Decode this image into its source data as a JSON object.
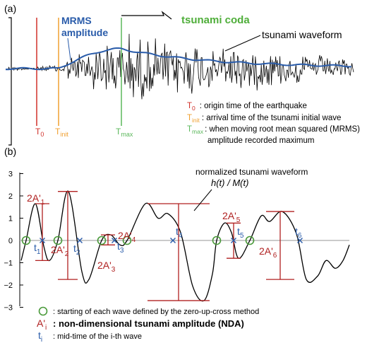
{
  "panel_a": {
    "label": "(a)",
    "mrms_title_line1": "MRMS",
    "mrms_title_line2": "amplitude",
    "coda_label": "tsunami coda",
    "waveform_label": "tsunami waveform",
    "markers": [
      {
        "main": "T",
        "sub": "0",
        "color": "#d0302a"
      },
      {
        "main": "T",
        "sub": "init",
        "color": "#f0a030"
      },
      {
        "main": "T",
        "sub": "max",
        "color": "#5cb85c"
      }
    ],
    "legend": [
      {
        "main": "T",
        "sub": "0",
        "color": "#d0302a",
        "text": ": origin time of the earthquake"
      },
      {
        "main": "T",
        "sub": "init",
        "color": "#f0a030",
        "text": ": arrival time of the tsunami initial wave"
      },
      {
        "main": "T",
        "sub": "max",
        "color": "#5cb85c",
        "text": ": when moving root mean squared (MRMS)"
      }
    ],
    "legend_cont": "amplitude recorded maximum",
    "colors": {
      "mrms": "#2a5caa",
      "waveform": "#000000"
    }
  },
  "panel_b": {
    "label": "(b)",
    "yticks": [
      "3",
      "2",
      "1",
      "0",
      "−1",
      "−2",
      "−3"
    ],
    "curve_label_line1": "normalized tsunami waveform",
    "curve_label_line2": "h(t) / M(t)",
    "amplitudes": [
      {
        "main": "2A'",
        "sub": "1"
      },
      {
        "main": "2A'",
        "sub": "2"
      },
      {
        "main": "2A'",
        "sub": "3"
      },
      {
        "main": "2A'",
        "sub": "4"
      },
      {
        "main": "2A'",
        "sub": "5"
      },
      {
        "main": "2A'",
        "sub": "6"
      }
    ],
    "midtimes": [
      {
        "main": "t",
        "sub": "1"
      },
      {
        "main": "t",
        "sub": "2"
      },
      {
        "main": "t",
        "sub": "3"
      },
      {
        "main": "t",
        "sub": "4"
      },
      {
        "main": "t",
        "sub": "5"
      },
      {
        "main": "t",
        "sub": "6"
      }
    ],
    "legend": {
      "zero_cross_text": ": starting of each wave defined by the zero-up-cross method",
      "nda_sym_main": "A'",
      "nda_sym_sub": "i",
      "nda_text": ": non-dimensional tsunami amplitude (NDA)",
      "mid_sym_main": "t",
      "mid_sym_sub": "i",
      "mid_text": ": mid-time of the i-th wave"
    },
    "colors": {
      "amplitude": "#b02020",
      "midtime": "#2a5caa",
      "zero_cross": "#4a9a3a",
      "axis": "#999999"
    }
  }
}
